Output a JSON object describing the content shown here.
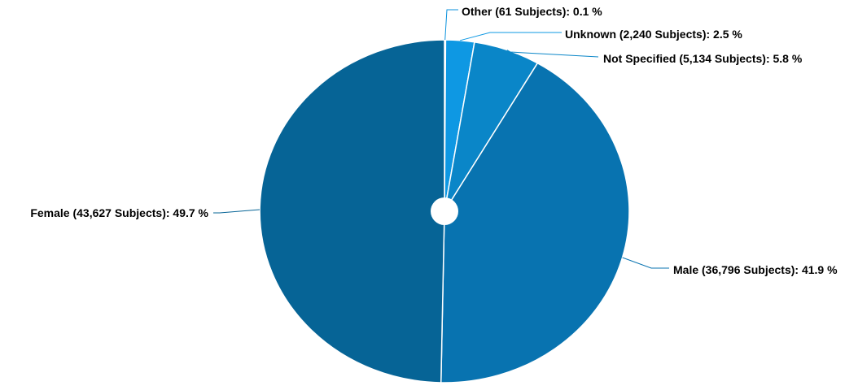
{
  "chart_data": {
    "type": "pie",
    "title": "",
    "slices": [
      {
        "label": "Other (61 Subjects): 0.1 %",
        "category": "Other",
        "subjects": 61,
        "percent": 0.1,
        "color": "#0b92dd"
      },
      {
        "label": "Unknown (2,240 Subjects): 2.5 %",
        "category": "Unknown",
        "subjects": 2240,
        "percent": 2.5,
        "color": "#0e98e3"
      },
      {
        "label": "Not Specified (5,134 Subjects): 5.8 %",
        "category": "Not Specified",
        "subjects": 5134,
        "percent": 5.8,
        "color": "#0a86c8"
      },
      {
        "label": "Male (36,796 Subjects): 41.9 %",
        "category": "Male",
        "subjects": 36796,
        "percent": 41.9,
        "color": "#0873b0"
      },
      {
        "label": "Female (43,627 Subjects): 49.7 %",
        "category": "Female",
        "subjects": 43627,
        "percent": 49.7,
        "color": "#066496"
      }
    ],
    "legend": "none",
    "center_hole": true
  }
}
